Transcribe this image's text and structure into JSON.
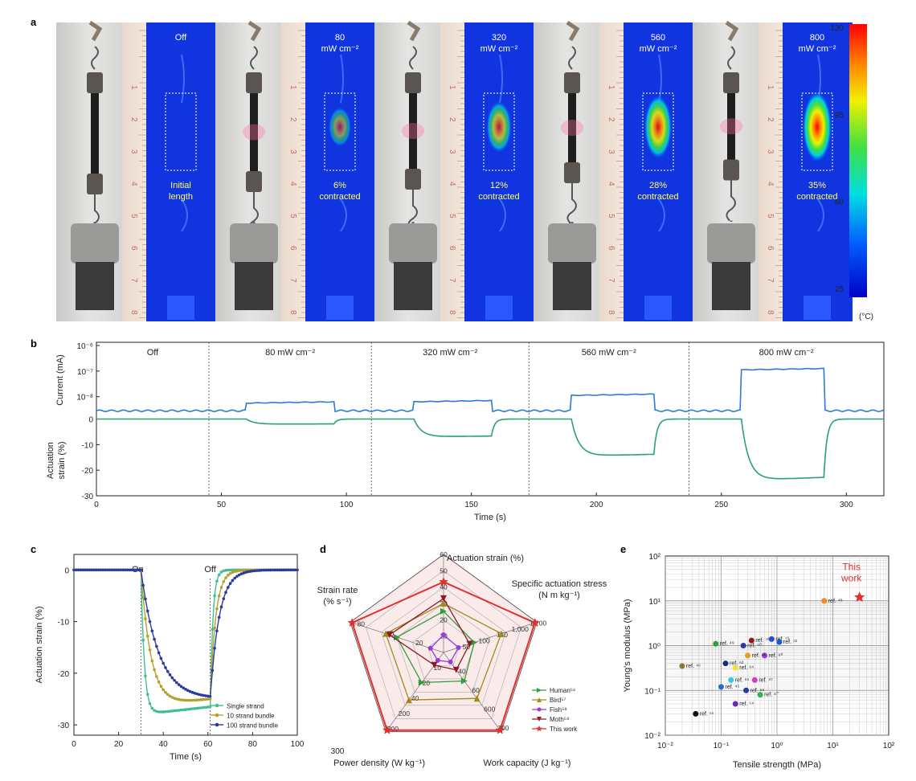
{
  "panel_a": {
    "letter": "a",
    "frames": [
      {
        "power": "Off",
        "unit": "",
        "caption1": "Initial",
        "caption2": "length",
        "contraction_pct": 0,
        "peak": 0.0
      },
      {
        "power": "80",
        "unit": "mW cm⁻²",
        "caption1": "6%",
        "caption2": "contracted",
        "contraction_pct": 6,
        "peak": 0.35
      },
      {
        "power": "320",
        "unit": "mW cm⁻²",
        "caption1": "12%",
        "caption2": "contracted",
        "contraction_pct": 12,
        "peak": 0.6
      },
      {
        "power": "560",
        "unit": "mW cm⁻²",
        "caption1": "28%",
        "caption2": "contracted",
        "contraction_pct": 28,
        "peak": 0.85
      },
      {
        "power": "800",
        "unit": "mW cm⁻²",
        "caption1": "35%",
        "caption2": "contracted",
        "contraction_pct": 35,
        "peak": 1.0
      }
    ],
    "ruler_ticks": [
      "1",
      "2",
      "3",
      "4",
      "5",
      "6",
      "7",
      "8"
    ],
    "colorbar": {
      "ticks": [
        "130",
        "95",
        "60",
        "25"
      ],
      "unit": "(°C)"
    }
  },
  "chart_data": [
    {
      "id": "b",
      "type": "line",
      "letter": "b",
      "xlabel": "Time (s)",
      "xlim": [
        0,
        315
      ],
      "xticks": [
        "0",
        "50",
        "100",
        "150",
        "200",
        "250",
        "300"
      ],
      "segments": [
        "Off",
        "80 mW cm⁻²",
        "320 mW cm⁻²",
        "560 mW cm⁻²",
        "800 mW cm⁻²"
      ],
      "segment_boundaries": [
        45,
        110,
        173,
        237
      ],
      "current": {
        "ylabel": "Current (mA)",
        "yticks": [
          "10⁻⁶",
          "10⁻⁷",
          "10⁻⁸"
        ],
        "log_ylim": [
          -8.7,
          -6
        ],
        "baseline_log": -8.55,
        "plateaus": [
          {
            "start": 60,
            "end": 95,
            "log_value": -8.25
          },
          {
            "start": 127,
            "end": 158,
            "log_value": -8.2
          },
          {
            "start": 190,
            "end": 223,
            "log_value": -7.95
          },
          {
            "start": 258,
            "end": 291,
            "log_value": -6.95
          }
        ]
      },
      "strain": {
        "ylabel": "Actuation strain (%)",
        "yticks": [
          "0",
          "-10",
          "-20",
          "-30"
        ],
        "ylim": [
          -30,
          3
        ],
        "plateaus": [
          {
            "start": 60,
            "end": 95,
            "value": -2
          },
          {
            "start": 127,
            "end": 158,
            "value": -7
          },
          {
            "start": 190,
            "end": 223,
            "value": -14.5
          },
          {
            "start": 258,
            "end": 291,
            "value": -24
          }
        ]
      }
    },
    {
      "id": "c",
      "type": "line",
      "letter": "c",
      "xlabel": "Time (s)",
      "ylabel": "Actuation strain (%)",
      "xlim": [
        0,
        100
      ],
      "ylim": [
        -32,
        3
      ],
      "xticks": [
        "0",
        "20",
        "40",
        "60",
        "80",
        "100"
      ],
      "yticks": [
        "0",
        "-10",
        "-20",
        "-30"
      ],
      "annotations": {
        "on": "On",
        "off": "Off",
        "on_x": 30,
        "off_x": 61
      },
      "series": [
        {
          "name": "Single strand",
          "color": "#3fbf8f",
          "tau_on": 1.5,
          "min": -28,
          "end_min": -26.5,
          "tau_off": 1.2,
          "start": 30,
          "stop": 61
        },
        {
          "name": "10 strand bundle",
          "color": "#b5a12a",
          "tau_on": 4.5,
          "min": -26.5,
          "end_min": -25,
          "tau_off": 2.5,
          "start": 30,
          "stop": 61
        },
        {
          "name": "100 strand bundle",
          "color": "#2b3aa0",
          "tau_on": 8,
          "min": -25.5,
          "end_min": -25,
          "tau_off": 4,
          "start": 30,
          "stop": 61
        }
      ]
    },
    {
      "id": "d",
      "type": "radar",
      "letter": "d",
      "axes": [
        {
          "label": "Actuation strain (%)",
          "ticks": [
            "10",
            "20",
            "30",
            "40",
            "50",
            "60"
          ],
          "max": 60
        },
        {
          "label": "Specific actuation stress (N m kg⁻¹)",
          "ticks": [
            "50",
            "100",
            "150",
            "1,000",
            "1,200"
          ],
          "max": 1200
        },
        {
          "label": "Work capacity (J kg⁻¹)",
          "ticks": [
            "40",
            "60",
            "600",
            "700"
          ],
          "max": 700
        },
        {
          "label": "Power density (W kg⁻¹)",
          "ticks": [
            "10",
            "20",
            "40",
            "200",
            "300"
          ],
          "max": 300
        },
        {
          "label": "Strain rate (% s⁻¹)",
          "ticks": [
            "20",
            "60",
            "80"
          ],
          "max": 80
        }
      ],
      "series": [
        {
          "name": "Human⁵⁶",
          "color": "#2f9e3a",
          "marker": "right-triangle",
          "values": [
            0.42,
            0.33,
            0.36,
            0.38,
            0.5
          ]
        },
        {
          "name": "Bird⁵⁷",
          "color": "#a08a1a",
          "marker": "triangle",
          "values": [
            0.5,
            0.62,
            0.58,
            0.6,
            0.62
          ]
        },
        {
          "name": "Fish⁵⁸",
          "color": "#9b3ad6",
          "marker": "circle",
          "values": [
            0.18,
            0.16,
            0.12,
            0.1,
            0.14
          ]
        },
        {
          "name": "Moth⁵⁹",
          "color": "#8b1b2b",
          "marker": "down-triangle",
          "values": [
            0.55,
            0.28,
            0.22,
            0.16,
            0.58
          ]
        },
        {
          "name": "This work",
          "color": "#e03030",
          "marker": "star",
          "values": [
            0.72,
            0.98,
            0.98,
            0.98,
            0.98
          ]
        }
      ],
      "extra_labels": {
        "power_300": "300"
      }
    },
    {
      "id": "e",
      "type": "scatter",
      "letter": "e",
      "xlabel": "Tensile strength (MPa)",
      "ylabel": "Young's modulus (MPa)",
      "xlog_lim": [
        -2,
        2
      ],
      "ylog_lim": [
        -2,
        2
      ],
      "xticks": [
        "10⁻²",
        "10⁻¹",
        "10⁰",
        "10¹",
        "10²"
      ],
      "yticks": [
        "10⁻²",
        "10⁻¹",
        "10⁰",
        "10¹",
        "10²"
      ],
      "this_work": {
        "label1": "This",
        "label2": "work",
        "x": 30,
        "y": 12,
        "color": "#e03030"
      },
      "points": [
        {
          "x": 7,
          "y": 10,
          "color": "#f08a1a",
          "label": "ref. ⁴⁸"
        },
        {
          "x": 0.02,
          "y": 0.35,
          "color": "#8a7a2a",
          "label": "ref. ⁴⁶"
        },
        {
          "x": 0.08,
          "y": 1.1,
          "color": "#2f9e3a",
          "label": "ref. ⁴⁹"
        },
        {
          "x": 0.25,
          "y": 1.0,
          "color": "#2a3aa0",
          "label": "ref. ⁵⁰"
        },
        {
          "x": 0.35,
          "y": 1.3,
          "color": "#8b1b2b",
          "label": "ref. ⁷⁰"
        },
        {
          "x": 0.8,
          "y": 1.4,
          "color": "#2a4ad0",
          "label": "ref. ⁷¹"
        },
        {
          "x": 1.1,
          "y": 1.2,
          "color": "#1a5ad0",
          "label": "ref. ⁷²"
        },
        {
          "x": 0.6,
          "y": 0.6,
          "color": "#9b3ad6",
          "label": "ref. ⁶⁰"
        },
        {
          "x": 0.3,
          "y": 0.6,
          "color": "#e0a020",
          "label": "ref. ⁶¹"
        },
        {
          "x": 0.12,
          "y": 0.4,
          "color": "#1a2a80",
          "label": "ref. ⁶²"
        },
        {
          "x": 0.18,
          "y": 0.32,
          "color": "#f0e040",
          "label": "ref. ⁶⁴"
        },
        {
          "x": 0.15,
          "y": 0.17,
          "color": "#2fc9e0",
          "label": "ref. ⁶⁵"
        },
        {
          "x": 0.4,
          "y": 0.17,
          "color": "#d040c0",
          "label": "ref. ⁴⁷"
        },
        {
          "x": 0.1,
          "y": 0.12,
          "color": "#2a6ad0",
          "label": "ref. ⁴⁵"
        },
        {
          "x": 0.28,
          "y": 0.1,
          "color": "#2a3aa0",
          "label": "ref. ⁶⁶"
        },
        {
          "x": 0.5,
          "y": 0.08,
          "color": "#2fb05a",
          "label": "ref. ⁶‷"
        },
        {
          "x": 0.18,
          "y": 0.05,
          "color": "#6a2ab0",
          "label": "ref. ⁵⁴"
        },
        {
          "x": 0.035,
          "y": 0.03,
          "color": "#111111",
          "label": "ref. ⁵⁵"
        }
      ]
    }
  ]
}
